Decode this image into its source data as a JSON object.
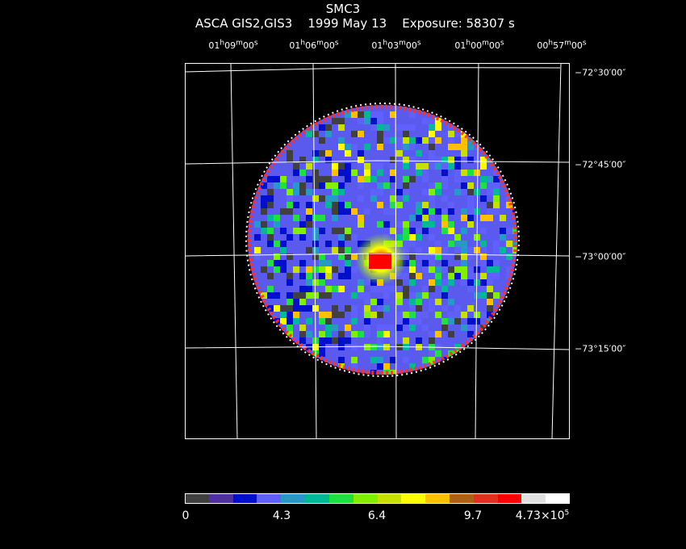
{
  "header": {
    "target": "SMC3",
    "instrument": "ASCA GIS2,GIS3",
    "date": "1999 May 13",
    "exposure": "Exposure: 58307 s"
  },
  "ra_labels": [
    {
      "h": "01",
      "m": "09",
      "s": "00"
    },
    {
      "h": "01",
      "m": "06",
      "s": "00"
    },
    {
      "h": "01",
      "m": "03",
      "s": "00"
    },
    {
      "h": "01",
      "m": "00",
      "s": "00"
    },
    {
      "h": "00",
      "m": "57",
      "s": "00"
    }
  ],
  "dec_labels": [
    "−72°30′00″",
    "−72°45′00″",
    "−73°00′00″",
    "−73°15′00″"
  ],
  "colorbar": {
    "colors": [
      "#404040",
      "#5030a0",
      "#0010c8",
      "#6060ff",
      "#2898c8",
      "#00b898",
      "#20e040",
      "#80f000",
      "#c8e000",
      "#ffff00",
      "#ffc000",
      "#b06010",
      "#e03020",
      "#ff0000",
      "#e0e0e0",
      "#ffffff"
    ],
    "ticks": [
      "0",
      "4.3",
      "6.4",
      "9.7"
    ],
    "max_mantissa": "4.73×10",
    "max_exponent": "5"
  },
  "grid_color": "#ffffff"
}
